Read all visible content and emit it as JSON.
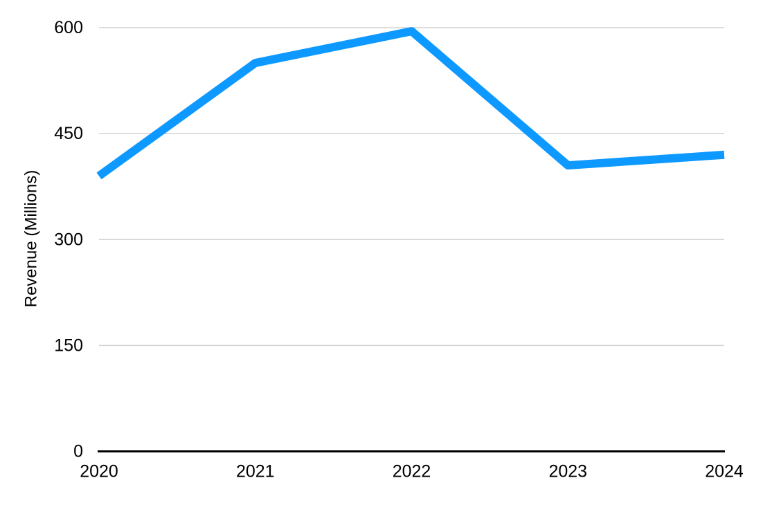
{
  "chart_data": {
    "type": "line",
    "x": [
      "2020",
      "2021",
      "2022",
      "2023",
      "2024"
    ],
    "series": [
      {
        "name": "Revenue",
        "values": [
          390,
          550,
          595,
          405,
          420
        ],
        "color": "#0d99ff"
      }
    ],
    "title": "",
    "xlabel": "",
    "ylabel": "Revenue (Millions)",
    "yticks": [
      0,
      150,
      300,
      450,
      600
    ],
    "ylim": [
      0,
      600
    ],
    "grid": true,
    "legend_position": "none",
    "line_width": 12,
    "colors": {
      "grid_line": "#d2d2d2",
      "axis_line": "#000000",
      "tick_text": "#000000",
      "background": "#ffffff"
    }
  }
}
